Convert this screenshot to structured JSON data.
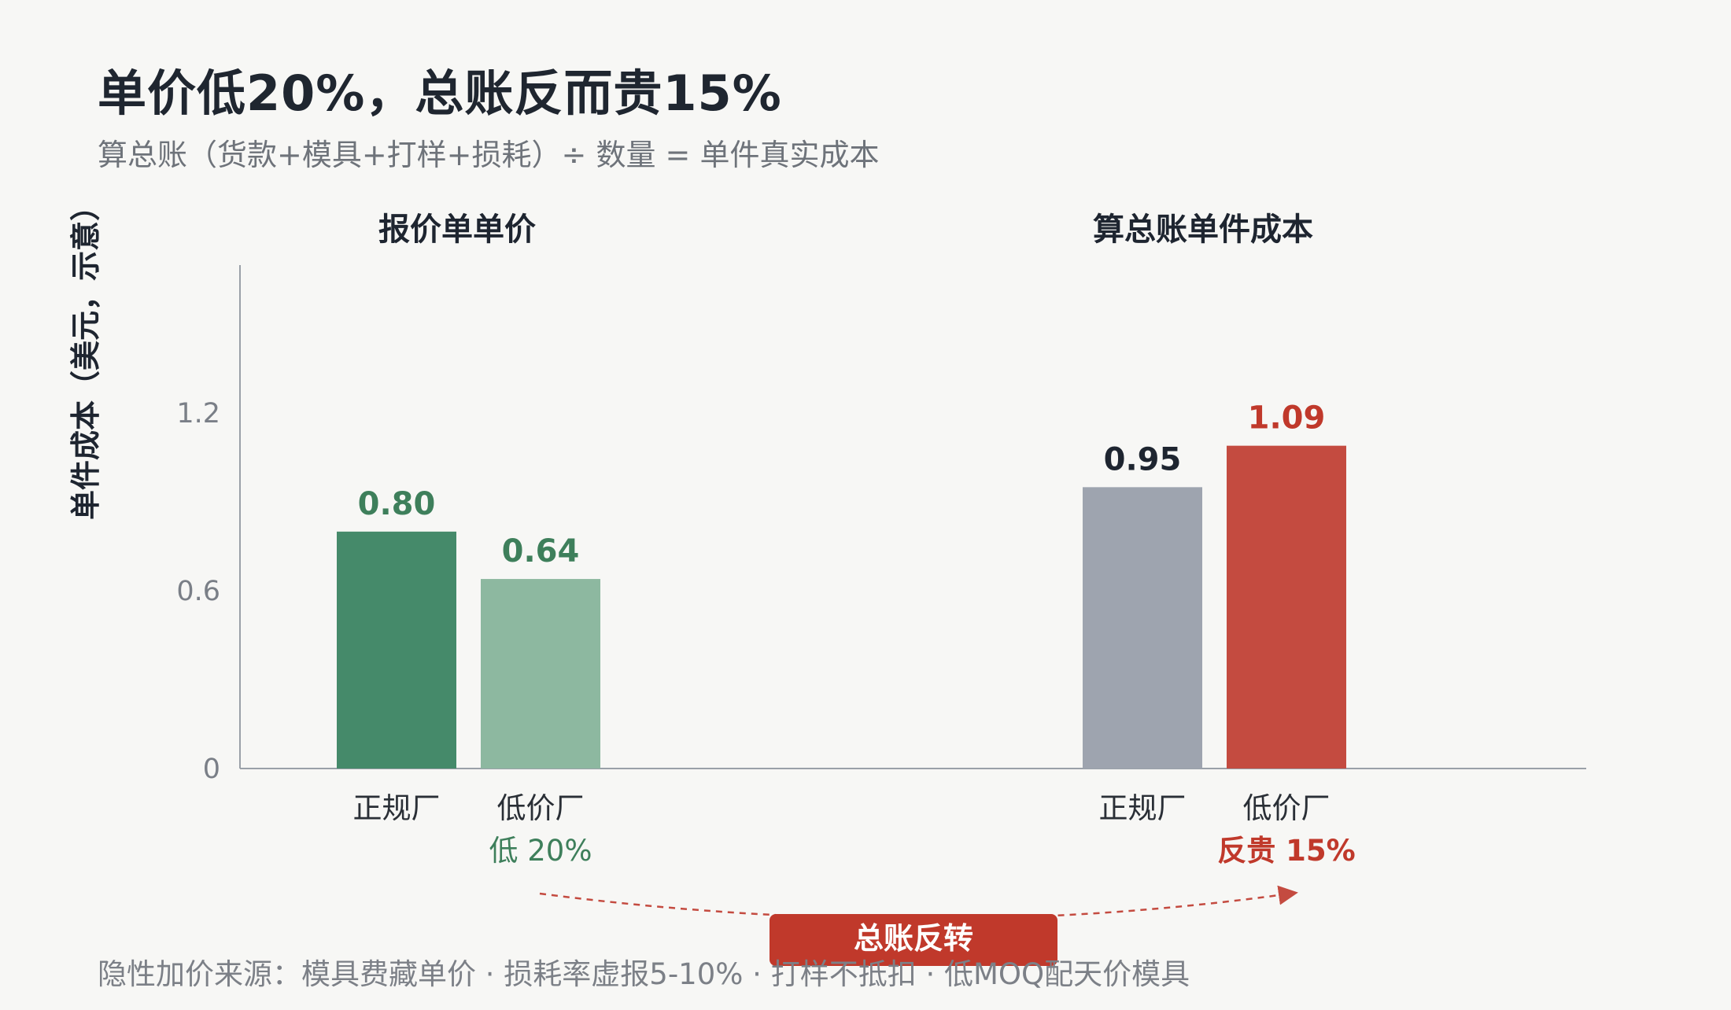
{
  "title": "单价低20%，总账反而贵15%",
  "subtitle": "算总账（货款+模具+打样+损耗）÷ 数量 = 单件真实成本",
  "footnote": "隐性加价来源：模具费藏单价 · 损耗率虚报5-10% · 打样不抵扣 · 低MOQ配天价模具",
  "reversal_label": "总账反转",
  "colors": {
    "green_dark": "#458a6a",
    "green_light": "#8db8a0",
    "gray": "#9ea4af",
    "red": "#c44b40",
    "green_text": "#3e7f5b",
    "red_text": "#c0392b",
    "dark_text": "#1e2530"
  },
  "chart_data": {
    "type": "bar",
    "ylabel": "单件成本（美元，示意）",
    "yticks": [
      0,
      0.6,
      1.2
    ],
    "ylim": [
      0,
      1.7
    ],
    "panels": [
      {
        "title": "报价单单价",
        "bars": [
          {
            "category": "正规厂",
            "value": 0.8,
            "label": "0.80",
            "color": "#458a6a",
            "label_color": "#3e7f5b",
            "note": ""
          },
          {
            "category": "低价厂",
            "value": 0.64,
            "label": "0.64",
            "color": "#8db8a0",
            "label_color": "#3e7f5b",
            "note": "低 20%",
            "note_color": "#3e7f5b"
          }
        ]
      },
      {
        "title": "算总账单件成本",
        "bars": [
          {
            "category": "正规厂",
            "value": 0.95,
            "label": "0.95",
            "color": "#9ea4af",
            "label_color": "#1e2530",
            "note": ""
          },
          {
            "category": "低价厂",
            "value": 1.09,
            "label": "1.09",
            "color": "#c44b40",
            "label_color": "#c0392b",
            "note": "反贵 15%",
            "note_color": "#c0392b"
          }
        ]
      }
    ]
  }
}
